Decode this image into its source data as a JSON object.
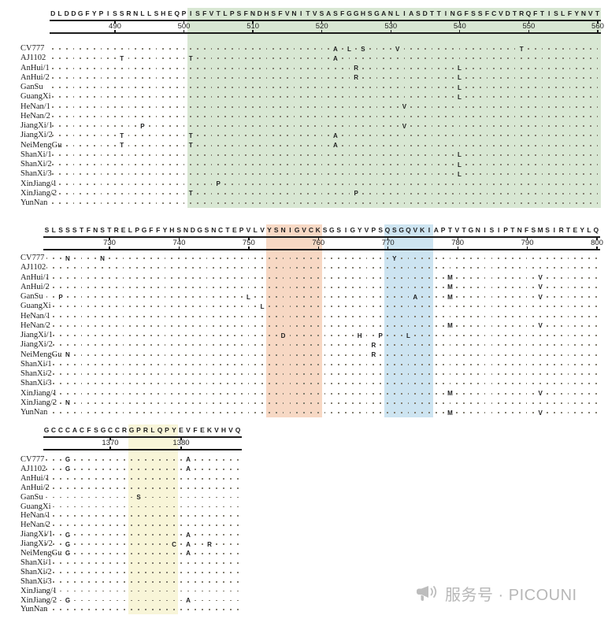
{
  "colors": {
    "green": "#d8e7d3",
    "pink": "#f7d8c4",
    "blue": "#cde4f1",
    "yellow": "#f8f5d8",
    "dot": "#837e70",
    "text": "#1e1e1e",
    "watermark_gray": "#b7b7b7"
  },
  "watermark": {
    "text": "服务号 · PICOUNI"
  },
  "blocks": [
    {
      "consensus": "DLDDGFYPISSRNLLSHEQPISFVTLPSFNDHSFVNITVSASFGGHSGANLIASDTTINGFSSFCVDTRQFTISLFYNVT",
      "cols": 80,
      "ticks": [
        {
          "col": 10,
          "label": "490"
        },
        {
          "col": 20,
          "label": "500"
        },
        {
          "col": 30,
          "label": "510"
        },
        {
          "col": 40,
          "label": "520"
        },
        {
          "col": 50,
          "label": "530"
        },
        {
          "col": 60,
          "label": "540"
        },
        {
          "col": 70,
          "label": "550"
        },
        {
          "col": 80,
          "label": "560"
        }
      ],
      "highlights": [
        {
          "from": 21,
          "to": 80,
          "color": "green"
        }
      ],
      "rows": [
        {
          "name": "CV777",
          "subs": [
            [
              42,
              "A"
            ],
            [
              44,
              "L"
            ],
            [
              46,
              "S"
            ],
            [
              51,
              "V"
            ],
            [
              69,
              "T"
            ]
          ]
        },
        {
          "name": "AJ1102",
          "subs": [
            [
              11,
              "T"
            ],
            [
              21,
              "T"
            ],
            [
              42,
              "A"
            ]
          ]
        },
        {
          "name": "AnHui/1",
          "subs": [
            [
              45,
              "R"
            ],
            [
              60,
              "L"
            ]
          ]
        },
        {
          "name": "AnHui/2",
          "subs": [
            [
              45,
              "R"
            ],
            [
              60,
              "L"
            ]
          ]
        },
        {
          "name": "GanSu",
          "subs": [
            [
              60,
              "L"
            ]
          ]
        },
        {
          "name": "GuangXi",
          "subs": [
            [
              60,
              "L"
            ]
          ]
        },
        {
          "name": "HeNan/1",
          "subs": [
            [
              52,
              "V"
            ]
          ]
        },
        {
          "name": "HeNan/2",
          "subs": []
        },
        {
          "name": "JiangXi/1",
          "subs": [
            [
              14,
              "P"
            ],
            [
              52,
              "V"
            ]
          ]
        },
        {
          "name": "JiangXi/2",
          "subs": [
            [
              11,
              "T"
            ],
            [
              21,
              "T"
            ],
            [
              42,
              "A"
            ]
          ]
        },
        {
          "name": "NeiMengGu",
          "subs": [
            [
              11,
              "T"
            ],
            [
              21,
              "T"
            ],
            [
              42,
              "A"
            ]
          ]
        },
        {
          "name": "ShanXi/1",
          "subs": [
            [
              60,
              "L"
            ]
          ]
        },
        {
          "name": "ShanXi/2",
          "subs": [
            [
              60,
              "L"
            ]
          ]
        },
        {
          "name": "ShanXi/3",
          "subs": [
            [
              60,
              "L"
            ]
          ]
        },
        {
          "name": "XinJiang/1",
          "subs": [
            [
              25,
              "P"
            ]
          ]
        },
        {
          "name": "XinJiang/2",
          "subs": [
            [
              21,
              "T"
            ],
            [
              45,
              "P"
            ]
          ]
        },
        {
          "name": "YunNan",
          "subs": []
        }
      ]
    },
    {
      "consensus": "SLSSSTFNSTRELPGFFYHSNDGSNCTEPVLVYSNIGVCKSGSIGYVPSQSGQVKIAPTVTGNISIPTNFSMSIRTEYLQ",
      "cols": 80,
      "ticks": [
        {
          "col": 10,
          "label": "730"
        },
        {
          "col": 20,
          "label": "740"
        },
        {
          "col": 30,
          "label": "750"
        },
        {
          "col": 40,
          "label": "760"
        },
        {
          "col": 50,
          "label": "770"
        },
        {
          "col": 60,
          "label": "780"
        },
        {
          "col": 70,
          "label": "790"
        },
        {
          "col": 80,
          "label": "800"
        }
      ],
      "highlights": [
        {
          "from": 33,
          "to": 40,
          "color": "pink"
        },
        {
          "from": 50,
          "to": 56,
          "color": "blue"
        }
      ],
      "rows": [
        {
          "name": "CV777",
          "subs": [
            [
              4,
              "N"
            ],
            [
              9,
              "N"
            ],
            [
              51,
              "Y"
            ]
          ]
        },
        {
          "name": "AJ1102",
          "subs": []
        },
        {
          "name": "AnHui/1",
          "subs": [
            [
              59,
              "M"
            ],
            [
              72,
              "V"
            ]
          ]
        },
        {
          "name": "AnHui/2",
          "subs": [
            [
              59,
              "M"
            ],
            [
              72,
              "V"
            ]
          ]
        },
        {
          "name": "GanSu",
          "subs": [
            [
              3,
              "P"
            ],
            [
              30,
              "L"
            ],
            [
              54,
              "A"
            ],
            [
              59,
              "M"
            ],
            [
              72,
              "V"
            ]
          ]
        },
        {
          "name": "GuangXi",
          "subs": [
            [
              32,
              "L"
            ]
          ]
        },
        {
          "name": "HeNan/1",
          "subs": []
        },
        {
          "name": "HeNan/2",
          "subs": [
            [
              59,
              "M"
            ],
            [
              72,
              "V"
            ]
          ]
        },
        {
          "name": "JiangXi/1",
          "subs": [
            [
              35,
              "D"
            ],
            [
              46,
              "H"
            ],
            [
              49,
              "P"
            ],
            [
              53,
              "L"
            ]
          ]
        },
        {
          "name": "JiangXi/2",
          "subs": [
            [
              48,
              "R"
            ]
          ]
        },
        {
          "name": "NeiMengGu",
          "subs": [
            [
              4,
              "N"
            ],
            [
              48,
              "R"
            ]
          ]
        },
        {
          "name": "ShanXi/1",
          "subs": []
        },
        {
          "name": "ShanXi/2",
          "subs": []
        },
        {
          "name": "ShanXi/3",
          "subs": []
        },
        {
          "name": "XinJiang/1",
          "subs": [
            [
              59,
              "M"
            ],
            [
              72,
              "V"
            ]
          ]
        },
        {
          "name": "XinJiang/2",
          "subs": [
            [
              4,
              "N"
            ]
          ]
        },
        {
          "name": "YunNan",
          "subs": [
            [
              59,
              "M"
            ],
            [
              72,
              "V"
            ]
          ]
        }
      ]
    },
    {
      "consensus": "GCCCACFSGCCRGPRLQPYEVFEKVHVQ",
      "cols": 28,
      "ticks": [
        {
          "col": 10,
          "label": "1370"
        },
        {
          "col": 20,
          "label": "1380"
        }
      ],
      "highlights": [
        {
          "from": 13,
          "to": 19,
          "color": "yellow"
        }
      ],
      "rows": [
        {
          "name": "CV777",
          "subs": [
            [
              4,
              "G"
            ],
            [
              21,
              "A"
            ]
          ]
        },
        {
          "name": "AJ1102",
          "subs": [
            [
              4,
              "G"
            ],
            [
              21,
              "A"
            ]
          ]
        },
        {
          "name": "AnHui/1",
          "subs": []
        },
        {
          "name": "AnHui/2",
          "subs": []
        },
        {
          "name": "GanSu",
          "subs": [
            [
              14,
              "S"
            ]
          ]
        },
        {
          "name": "GuangXi",
          "subs": []
        },
        {
          "name": "HeNan/1",
          "subs": []
        },
        {
          "name": "HeNan/2",
          "subs": []
        },
        {
          "name": "JiangXi/1",
          "subs": [
            [
              4,
              "G"
            ],
            [
              21,
              "A"
            ]
          ]
        },
        {
          "name": "JiangXi/2",
          "subs": [
            [
              4,
              "G"
            ],
            [
              19,
              "C"
            ],
            [
              21,
              "A"
            ],
            [
              24,
              "R"
            ]
          ]
        },
        {
          "name": "NeiMengGu",
          "subs": [
            [
              4,
              "G"
            ],
            [
              21,
              "A"
            ]
          ]
        },
        {
          "name": "ShanXi/1",
          "subs": []
        },
        {
          "name": "ShanXi/2",
          "subs": []
        },
        {
          "name": "ShanXi/3",
          "subs": []
        },
        {
          "name": "XinJiang/1",
          "subs": []
        },
        {
          "name": "XinJiang/2",
          "subs": [
            [
              4,
              "G"
            ],
            [
              21,
              "A"
            ]
          ]
        },
        {
          "name": "YunNan",
          "subs": []
        }
      ]
    }
  ]
}
